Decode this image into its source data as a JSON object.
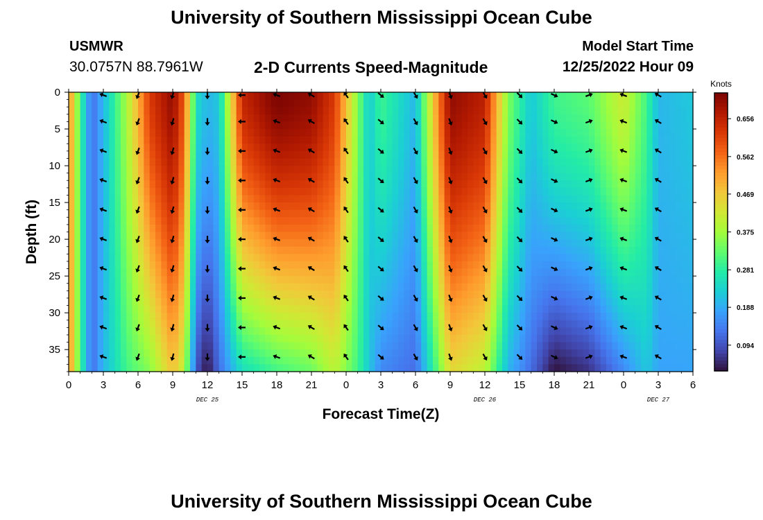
{
  "header": {
    "title": "University of Southern Mississippi Ocean Cube",
    "station_id": "USMWR",
    "station_coords": "30.0757N  88.7961W",
    "subtitle": "2-D Currents Speed-Magnitude",
    "model_start_label": "Model Start Time",
    "model_start_value": "12/25/2022 Hour 09"
  },
  "footer": {
    "title": "University of Southern Mississippi Ocean Cube"
  },
  "chart_data": {
    "type": "heatmap",
    "title": "2-D Currents Speed-Magnitude",
    "xlabel": "Forecast Time(Z)",
    "ylabel": "Depth (ft)",
    "x_hours_range": [
      0,
      54
    ],
    "ylim": [
      0,
      38
    ],
    "x_tick_labels": [
      "0",
      "3",
      "6",
      "9",
      "12",
      "15",
      "18",
      "21",
      "0",
      "3",
      "6",
      "9",
      "12",
      "15",
      "18",
      "21",
      "0",
      "3",
      "6"
    ],
    "y_ticks": [
      0,
      5,
      10,
      15,
      20,
      25,
      30,
      35
    ],
    "date_labels": [
      {
        "hour": 12,
        "text": "DEC 25"
      },
      {
        "hour": 36,
        "text": "DEC 26"
      },
      {
        "hour": 51,
        "text": "DEC 27"
      }
    ],
    "colorbar": {
      "unit": "Knots",
      "min": 0.03,
      "max": 0.72,
      "tick_labels": [
        "0.656",
        "0.562",
        "0.469",
        "0.375",
        "0.281",
        "0.188",
        "0.094"
      ],
      "colors": [
        "#30123b",
        "#4145ab",
        "#4675ed",
        "#39a2fc",
        "#1bcfd4",
        "#24eca6",
        "#61fc6c",
        "#a4fc3b",
        "#d1e834",
        "#f3c63a",
        "#fe9b2d",
        "#f36315",
        "#d93806",
        "#b11901",
        "#7a0403"
      ]
    },
    "arrow_depths": [
      0,
      4,
      8,
      12,
      16,
      20,
      24,
      28,
      32,
      36
    ],
    "speed_profile": [
      {
        "hour": 0,
        "surface": 0.55,
        "bottom": 0.55
      },
      {
        "hour": 1,
        "surface": 0.3,
        "bottom": 0.3
      },
      {
        "hour": 2,
        "surface": 0.12,
        "bottom": 0.12
      },
      {
        "hour": 3,
        "surface": 0.2,
        "bottom": 0.2
      },
      {
        "hour": 5,
        "surface": 0.38,
        "bottom": 0.3
      },
      {
        "hour": 7,
        "surface": 0.62,
        "bottom": 0.35
      },
      {
        "hour": 9,
        "surface": 0.7,
        "bottom": 0.48
      },
      {
        "hour": 10,
        "surface": 0.58,
        "bottom": 0.4
      },
      {
        "hour": 11,
        "surface": 0.25,
        "bottom": 0.1
      },
      {
        "hour": 12,
        "surface": 0.2,
        "bottom": 0.03
      },
      {
        "hour": 13,
        "surface": 0.22,
        "bottom": 0.12
      },
      {
        "hour": 15,
        "surface": 0.65,
        "bottom": 0.25
      },
      {
        "hour": 18,
        "surface": 0.72,
        "bottom": 0.3
      },
      {
        "hour": 21,
        "surface": 0.7,
        "bottom": 0.33
      },
      {
        "hour": 23,
        "surface": 0.62,
        "bottom": 0.4
      },
      {
        "hour": 25,
        "surface": 0.35,
        "bottom": 0.3
      },
      {
        "hour": 26,
        "surface": 0.22,
        "bottom": 0.22
      },
      {
        "hour": 27,
        "surface": 0.3,
        "bottom": 0.15
      },
      {
        "hour": 30,
        "surface": 0.2,
        "bottom": 0.12
      },
      {
        "hour": 32,
        "surface": 0.55,
        "bottom": 0.33
      },
      {
        "hour": 33,
        "surface": 0.7,
        "bottom": 0.45
      },
      {
        "hour": 36,
        "surface": 0.66,
        "bottom": 0.4
      },
      {
        "hour": 38,
        "surface": 0.35,
        "bottom": 0.2
      },
      {
        "hour": 40,
        "surface": 0.22,
        "bottom": 0.12
      },
      {
        "hour": 42,
        "surface": 0.3,
        "bottom": 0.03
      },
      {
        "hour": 45,
        "surface": 0.32,
        "bottom": 0.06
      },
      {
        "hour": 48,
        "surface": 0.42,
        "bottom": 0.15
      },
      {
        "hour": 50,
        "surface": 0.3,
        "bottom": 0.22
      },
      {
        "hour": 51,
        "surface": 0.2,
        "bottom": 0.18
      },
      {
        "hour": 54,
        "surface": 0.22,
        "bottom": 0.18
      }
    ],
    "arrows": [
      {
        "hour": 3,
        "angle": 200
      },
      {
        "hour": 6,
        "angle": 110
      },
      {
        "hour": 9,
        "angle": 105
      },
      {
        "hour": 12,
        "angle": 90
      },
      {
        "hour": 15,
        "angle": 180
      },
      {
        "hour": 18,
        "angle": 200
      },
      {
        "hour": 21,
        "angle": 210
      },
      {
        "hour": 24,
        "angle": 235
      },
      {
        "hour": 27,
        "angle": 40
      },
      {
        "hour": 30,
        "angle": 60
      },
      {
        "hour": 33,
        "angle": 70
      },
      {
        "hour": 36,
        "angle": 60
      },
      {
        "hour": 39,
        "angle": 45
      },
      {
        "hour": 42,
        "angle": 25
      },
      {
        "hour": 45,
        "angle": 340
      },
      {
        "hour": 48,
        "angle": 200
      },
      {
        "hour": 51,
        "angle": 210
      }
    ]
  }
}
